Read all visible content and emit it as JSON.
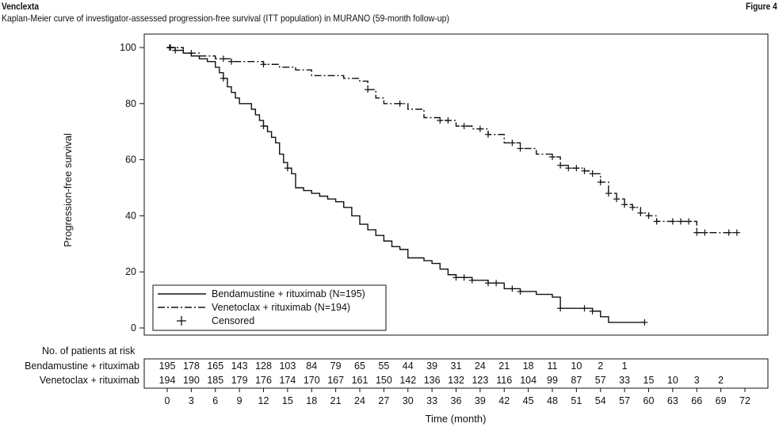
{
  "header": {
    "brand": "Venclexta",
    "figure": "Figure 4",
    "subtitle": "Kaplan-Meier curve of investigator-assessed progression-free survival (ITT population) in MURANO (59-month follow-up)"
  },
  "chart_data": {
    "type": "line",
    "title": "",
    "xlabel": "Time (month)",
    "ylabel": "Progression-free survival",
    "xlim": [
      0,
      72
    ],
    "ylim": [
      0,
      100
    ],
    "xticks": [
      0,
      3,
      6,
      9,
      12,
      15,
      18,
      21,
      24,
      27,
      30,
      33,
      36,
      39,
      42,
      45,
      48,
      51,
      54,
      57,
      60,
      63,
      66,
      69,
      72
    ],
    "yticks": [
      0,
      20,
      40,
      60,
      80,
      100
    ],
    "grid": false,
    "legend_position": "bottom-left",
    "legend": {
      "censored_label": "Censored"
    },
    "series": [
      {
        "name": "Bendamustine + rituximab (N=195)",
        "style": "solid",
        "x": [
          0,
          1,
          2,
          3,
          4,
          5,
          6,
          6.5,
          7,
          7.5,
          8,
          8.5,
          9,
          9.5,
          10,
          10.5,
          11,
          11.5,
          12,
          12.5,
          13,
          13.5,
          14,
          14.5,
          15,
          15.5,
          16,
          17,
          18,
          19,
          20,
          21,
          22,
          23,
          24,
          25,
          26,
          27,
          28,
          29,
          30,
          31,
          32,
          33,
          34,
          35,
          36,
          38,
          40,
          42,
          44,
          46,
          47,
          48,
          49,
          50,
          51,
          52,
          53,
          54,
          55,
          56,
          57,
          58,
          59.5
        ],
        "y": [
          100,
          99,
          98,
          97,
          96,
          95,
          93,
          91,
          89,
          86,
          84,
          82,
          80,
          80,
          80,
          78,
          76,
          74,
          72,
          70,
          68,
          66,
          62,
          59,
          57,
          55,
          50,
          49,
          48,
          47,
          46,
          45,
          43,
          40,
          37,
          35,
          33,
          31,
          29,
          28,
          25,
          25,
          24,
          23,
          21,
          19,
          18,
          17,
          16,
          14,
          13,
          12,
          12,
          11,
          7,
          7,
          7,
          7,
          6,
          4,
          2,
          2,
          2,
          2,
          2
        ]
      },
      {
        "name": "Venetoclax + rituximab (N=194)",
        "style": "dash-dot",
        "x": [
          0,
          2,
          4,
          6,
          8,
          10,
          12,
          14,
          16,
          18,
          20,
          22,
          24,
          25,
          26,
          27,
          28,
          30,
          32,
          34,
          36,
          38,
          40,
          42,
          44,
          46,
          48,
          49,
          50,
          51,
          52,
          53,
          54,
          55,
          56,
          57,
          58,
          59,
          60,
          61,
          62,
          63,
          64,
          65,
          66,
          67,
          68,
          69,
          70,
          71
        ],
        "y": [
          100,
          98,
          97,
          96,
          95,
          95,
          94,
          93,
          92,
          90,
          90,
          89,
          88,
          85,
          82,
          80,
          80,
          78,
          75,
          74,
          72,
          71,
          69,
          66,
          64,
          62,
          61,
          58,
          57,
          57,
          56,
          55,
          52,
          48,
          46,
          44,
          43,
          41,
          40,
          38,
          38,
          38,
          38,
          38,
          34,
          34,
          34,
          34,
          34,
          34
        ]
      }
    ],
    "censored": [
      {
        "series": 0,
        "x": [
          0.4,
          1,
          7,
          12,
          15,
          36,
          37,
          38,
          40,
          41,
          43,
          44,
          49,
          52,
          53,
          59.5
        ]
      },
      {
        "series": 1,
        "x": [
          0.3,
          3,
          7,
          8,
          12,
          25,
          29,
          34,
          35,
          37,
          39,
          40,
          43,
          44,
          48,
          49,
          50,
          51,
          52,
          53,
          54,
          55,
          56,
          57,
          58,
          59,
          60,
          61,
          63,
          64,
          65,
          66,
          67,
          70,
          71
        ]
      }
    ],
    "risk_table": {
      "title": "No. of patients at risk",
      "rows": [
        {
          "label": "Bendamustine + rituximab",
          "values": [
            "195",
            "178",
            "165",
            "143",
            "128",
            "103",
            "84",
            "79",
            "65",
            "55",
            "44",
            "39",
            "31",
            "24",
            "21",
            "18",
            "11",
            "10",
            "2",
            "1"
          ]
        },
        {
          "label": "Venetoclax + rituximab",
          "values": [
            "194",
            "190",
            "185",
            "179",
            "176",
            "174",
            "170",
            "167",
            "161",
            "150",
            "142",
            "136",
            "132",
            "123",
            "116",
            "104",
            "99",
            "87",
            "57",
            "33",
            "15",
            "10",
            "3",
            "2"
          ]
        }
      ]
    }
  }
}
